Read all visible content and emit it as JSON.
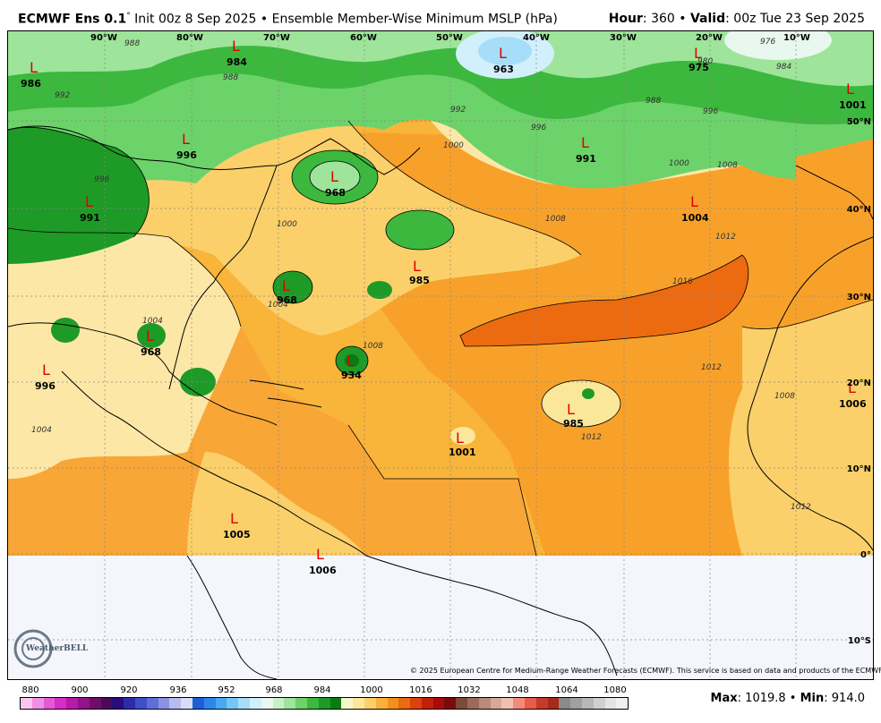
{
  "header": {
    "model": "ECMWF Ens 0.1",
    "degree": "°",
    "init": "Init 00z 8 Sep 2025",
    "bullet": "•",
    "field": "Ensemble Member-Wise Minimum MSLP (hPa)",
    "hour_label": "Hour",
    "hour_value": ": 360",
    "valid_label": "Valid",
    "valid_value": ": 00z Tue 23 Sep 2025"
  },
  "longitude_labels": [
    "90°W",
    "80°W",
    "70°W",
    "60°W",
    "50°W",
    "40°W",
    "30°W",
    "20°W",
    "10°W"
  ],
  "latitude_labels": [
    "50°N",
    "40°N",
    "30°N",
    "20°N",
    "10°N",
    "0°",
    "10°S"
  ],
  "lows": [
    "986",
    "984",
    "963",
    "975",
    "1001",
    "996",
    "991",
    "968",
    "991",
    "1004",
    "985",
    "968",
    "968",
    "934",
    "996",
    "985",
    "1001",
    "1006",
    "1005",
    "1006"
  ],
  "low_marker": "L",
  "isobar_labels": [
    "988",
    "988",
    "992",
    "996",
    "1000",
    "1004",
    "1008",
    "1012",
    "1016",
    "1012",
    "1008",
    "1004",
    "1000",
    "996",
    "976",
    "980",
    "984",
    "988",
    "992",
    "996",
    "1000",
    "1004",
    "1008",
    "1012",
    "1008",
    "1012"
  ],
  "logo": "WeatherBELL",
  "copyright": "© 2025 European Centre for Medium-Range Weather Forecasts (ECMWF). This service is based on data and products of the ECMWF.",
  "colorbar": {
    "ticks": [
      "880",
      "900",
      "920",
      "936",
      "952",
      "968",
      "984",
      "1000",
      "1016",
      "1032",
      "1048",
      "1064",
      "1080"
    ],
    "colors": [
      "#f7c6f0",
      "#ee8fe4",
      "#e35ad6",
      "#d42ec6",
      "#b81aa8",
      "#931388",
      "#6e0e68",
      "#4a0a5a",
      "#2a0c7a",
      "#2c2ca8",
      "#3f4fc8",
      "#5f6fd8",
      "#8a92e4",
      "#b6bcee",
      "#d9dcf5",
      "#1f5fd6",
      "#2f86ea",
      "#4aa8f2",
      "#74c6f6",
      "#a6defa",
      "#d2effc",
      "#e8f8ee",
      "#c8f0c8",
      "#9ee49a",
      "#6cd26a",
      "#3cb83e",
      "#1e9a26",
      "#0a7a14",
      "#f6f7c8",
      "#fbe79a",
      "#fbd06a",
      "#f8b23c",
      "#f4901a",
      "#ec6a10",
      "#dc420c",
      "#c22008",
      "#a60c0c",
      "#7c0a0a",
      "#7a4a3a",
      "#9a6a5a",
      "#ba8a7a",
      "#d6a898",
      "#f0c0b0",
      "#f48a7a",
      "#e45c4c",
      "#c63a2a",
      "#a82a1a",
      "#8a8a8a",
      "#a0a0a0",
      "#b8b8b8",
      "#d0d0d0",
      "#e4e4e4",
      "#f0f0f0"
    ]
  },
  "stats": {
    "max_label": "Max",
    "max_value": ": 1019.8",
    "bullet": "•",
    "min_label": "Min",
    "min_value": ": 914.0"
  }
}
